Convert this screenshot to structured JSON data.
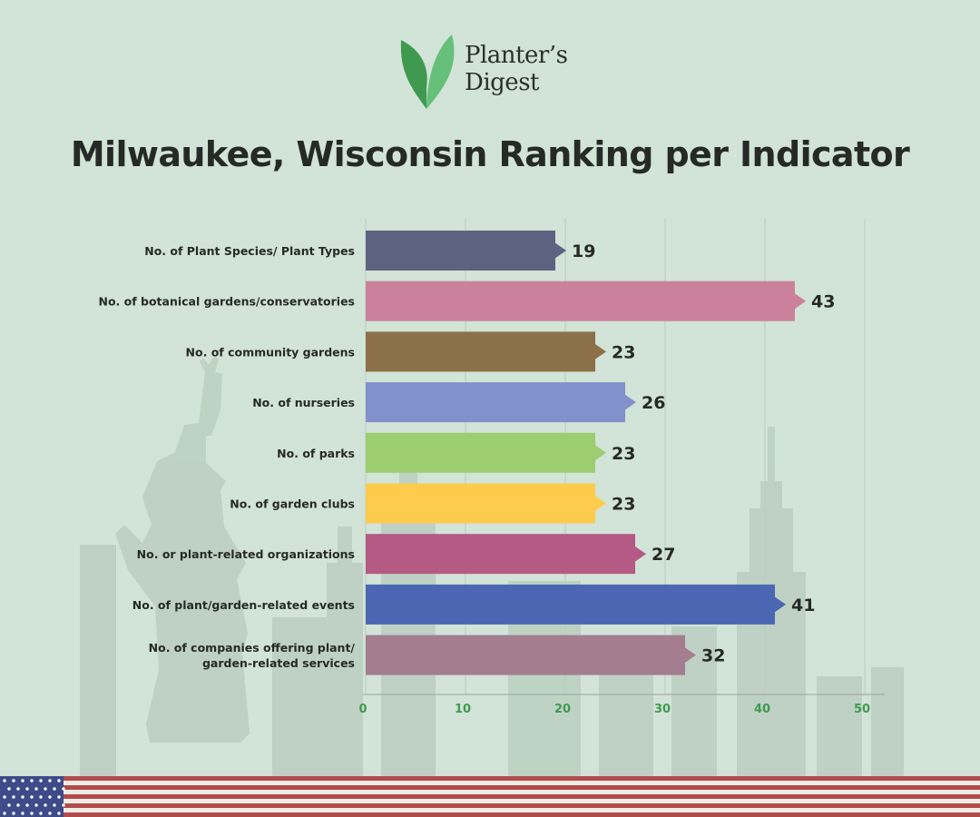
{
  "brand": {
    "line1": "Planter’s",
    "line2": "Digest",
    "colors": {
      "leaf_dark": "#3f9a50",
      "leaf_light": "#67c07a"
    }
  },
  "title": "Milwaukee, Wisconsin Ranking per Indicator",
  "chart_data": {
    "type": "bar",
    "orientation": "horizontal",
    "categories": [
      "No. of Plant Species/ Plant Types",
      "No. of botanical gardens/conservatories",
      "No. of community gardens",
      "No. of nurseries",
      "No. of parks",
      "No. of garden clubs",
      "No. or plant-related organizations",
      "No. of plant/garden-related events",
      "No. of companies offering plant/ garden-related services"
    ],
    "category_lines": [
      [
        "No. of Plant Species/ Plant Types"
      ],
      [
        "No. of botanical gardens/conservatories"
      ],
      [
        "No. of community gardens"
      ],
      [
        "No. of nurseries"
      ],
      [
        "No. of parks"
      ],
      [
        "No. of garden clubs"
      ],
      [
        "No. or plant-related organizations"
      ],
      [
        "No. of plant/garden-related events"
      ],
      [
        "No. of companies offering plant/",
        "garden-related services"
      ]
    ],
    "values": [
      19,
      43,
      23,
      26,
      23,
      23,
      27,
      41,
      32
    ],
    "colors": [
      "#5e6382",
      "#cb819c",
      "#8b7049",
      "#8191cb",
      "#9ccd6e",
      "#fecc4d",
      "#b45a84",
      "#4b67b3",
      "#a47d8f"
    ],
    "xlim": [
      0,
      52
    ],
    "xticks": [
      0,
      10,
      20,
      30,
      40,
      50
    ],
    "xlabel": "",
    "ylabel": "",
    "grid": true,
    "tick_color": "#3f9a50"
  }
}
